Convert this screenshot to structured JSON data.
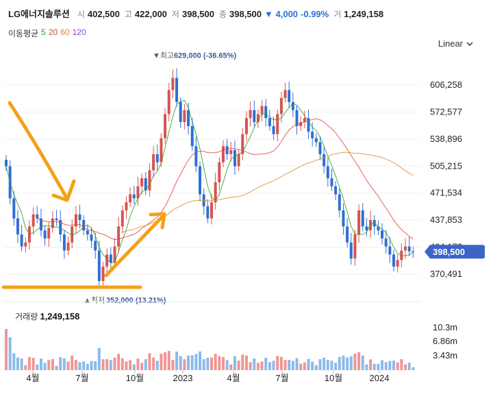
{
  "header": {
    "name": "LG에너지솔루션",
    "open_label": "시",
    "open": "402,500",
    "high_label": "고",
    "high": "422,000",
    "low_label": "저",
    "low": "398,500",
    "close_label": "종",
    "close": "398,500",
    "change": "▼ 4,000",
    "change_pct": "-0.99%",
    "volume_label": "거",
    "volume": "1,249,158"
  },
  "moving_average": {
    "label": "이동평균",
    "periods": [
      {
        "value": "5",
        "color": "#2e9b2e"
      },
      {
        "value": "20",
        "color": "#e0453a"
      },
      {
        "value": "60",
        "color": "#e08a1e"
      },
      {
        "value": "120",
        "color": "#8a4bc9"
      }
    ]
  },
  "scale": {
    "label": "Linear",
    "icon": "chevron-down-icon"
  },
  "chart_data": {
    "type": "candlestick",
    "y_ticks": [
      "606,258",
      "572,577",
      "538,896",
      "505,215",
      "471,534",
      "437,853",
      "404,172",
      "370,491"
    ],
    "y_tick_values": [
      606258,
      572577,
      538896,
      505215,
      471534,
      437853,
      404172,
      370491
    ],
    "x_ticks": [
      "4월",
      "7월",
      "10월",
      "2023",
      "4월",
      "7월",
      "10월",
      "2024"
    ],
    "current_price": "398,500",
    "current_price_value": 398500,
    "annotations": {
      "max_label": "▼최고",
      "max_value": "629,000 (-36.65%)",
      "max_price": 629000,
      "min_label": "▲최저",
      "min_value": "352,000 (13.21%)",
      "min_price": 352000
    },
    "close_series": [
      505000,
      465000,
      440000,
      420000,
      405000,
      410000,
      430000,
      445000,
      440000,
      425000,
      415000,
      428000,
      440000,
      438000,
      420000,
      400000,
      410000,
      430000,
      445000,
      438000,
      425000,
      420000,
      412000,
      400000,
      362000,
      380000,
      395000,
      385000,
      405000,
      430000,
      450000,
      460000,
      470000,
      465000,
      480000,
      490000,
      475000,
      500000,
      520000,
      510000,
      540000,
      570000,
      600000,
      615000,
      585000,
      560000,
      575000,
      555000,
      530000,
      505000,
      470000,
      455000,
      440000,
      460000,
      485000,
      510000,
      530000,
      520000,
      525000,
      505000,
      520000,
      545000,
      565000,
      575000,
      560000,
      570000,
      580000,
      565000,
      555000,
      545000,
      570000,
      590000,
      600000,
      585000,
      575000,
      555000,
      560000,
      565000,
      548000,
      540000,
      535000,
      520000,
      505000,
      490000,
      480000,
      470000,
      450000,
      430000,
      410000,
      390000,
      420000,
      450000,
      430000,
      425000,
      438000,
      430000,
      425000,
      415000,
      405000,
      395000,
      380000,
      388000,
      400000,
      405000,
      399000,
      398500
    ],
    "volume_ticks": [
      "10.3m",
      "6.86m",
      "3.43m"
    ],
    "volume_title": "거래량",
    "volume_value": "1,249,158",
    "marks": {
      "stroke_color": "#f5a018",
      "up_color": "#d9534f",
      "down_color": "#2f6fd3",
      "current_tag_color": "#3d63c9"
    }
  }
}
